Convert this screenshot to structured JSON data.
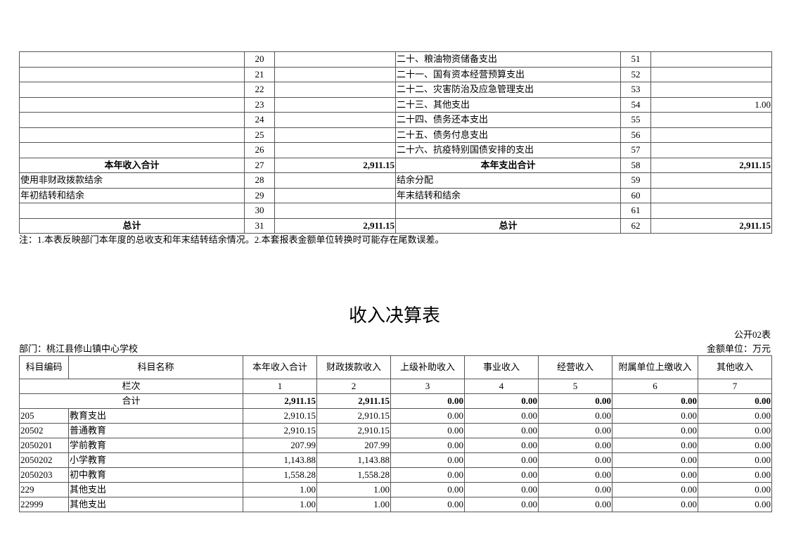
{
  "top_table": {
    "rows": [
      {
        "left_label": "",
        "left_no": "20",
        "left_val": "",
        "right_label": "二十、粮油物资储备支出",
        "right_no": "51",
        "right_val": "",
        "bold": false
      },
      {
        "left_label": "",
        "left_no": "21",
        "left_val": "",
        "right_label": "二十一、国有资本经营预算支出",
        "right_no": "52",
        "right_val": "",
        "bold": false
      },
      {
        "left_label": "",
        "left_no": "22",
        "left_val": "",
        "right_label": "二十二、灾害防治及应急管理支出",
        "right_no": "53",
        "right_val": "",
        "bold": false
      },
      {
        "left_label": "",
        "left_no": "23",
        "left_val": "",
        "right_label": "二十三、其他支出",
        "right_no": "54",
        "right_val": "1.00",
        "bold": false
      },
      {
        "left_label": "",
        "left_no": "24",
        "left_val": "",
        "right_label": "二十四、债务还本支出",
        "right_no": "55",
        "right_val": "",
        "bold": false
      },
      {
        "left_label": "",
        "left_no": "25",
        "left_val": "",
        "right_label": "二十五、债务付息支出",
        "right_no": "56",
        "right_val": "",
        "bold": false
      },
      {
        "left_label": "",
        "left_no": "26",
        "left_val": "",
        "right_label": "二十六、抗疫特别国债安排的支出",
        "right_no": "57",
        "right_val": "",
        "bold": false
      },
      {
        "left_label": "本年收入合计",
        "left_no": "27",
        "left_val": "2,911.15",
        "right_label": "本年支出合计",
        "right_no": "58",
        "right_val": "2,911.15",
        "bold": true
      },
      {
        "left_label": "使用非财政拨款结余",
        "left_no": "28",
        "left_val": "",
        "right_label": "结余分配",
        "right_no": "59",
        "right_val": "",
        "bold": false
      },
      {
        "left_label": "年初结转和结余",
        "left_no": "29",
        "left_val": "",
        "right_label": "年末结转和结余",
        "right_no": "60",
        "right_val": "",
        "bold": false
      },
      {
        "left_label": "",
        "left_no": "30",
        "left_val": "",
        "right_label": "",
        "right_no": "61",
        "right_val": "",
        "bold": false
      },
      {
        "left_label": "总计",
        "left_no": "31",
        "left_val": "2,911.15",
        "right_label": "总计",
        "right_no": "62",
        "right_val": "2,911.15",
        "bold": true
      }
    ],
    "note": "注：1.本表反映部门本年度的总收支和年末结转结余情况。2.本套报表金额单位转换时可能存在尾数误差。"
  },
  "income_table": {
    "title": "收入决算表",
    "form_no": "公开02表",
    "department": "部门：桃江县修山镇中心学校",
    "unit": "金额单位：万元",
    "headers": [
      "科目编码",
      "科目名称",
      "本年收入合计",
      "财政拨款收入",
      "上级补助收入",
      "事业收入",
      "经营收入",
      "附属单位上缴收入",
      "其他收入"
    ],
    "column_index_label": "栏次",
    "column_indices": [
      "1",
      "2",
      "3",
      "4",
      "5",
      "6",
      "7"
    ],
    "total_label": "合计",
    "total_values": [
      "2,911.15",
      "2,911.15",
      "0.00",
      "0.00",
      "0.00",
      "0.00",
      "0.00"
    ],
    "rows": [
      {
        "code": "205",
        "name": "教育支出",
        "values": [
          "2,910.15",
          "2,910.15",
          "0.00",
          "0.00",
          "0.00",
          "0.00",
          "0.00"
        ]
      },
      {
        "code": "20502",
        "name": "普通教育",
        "values": [
          "2,910.15",
          "2,910.15",
          "0.00",
          "0.00",
          "0.00",
          "0.00",
          "0.00"
        ]
      },
      {
        "code": "2050201",
        "name": "学前教育",
        "values": [
          "207.99",
          "207.99",
          "0.00",
          "0.00",
          "0.00",
          "0.00",
          "0.00"
        ]
      },
      {
        "code": "2050202",
        "name": "小学教育",
        "values": [
          "1,143.88",
          "1,143.88",
          "0.00",
          "0.00",
          "0.00",
          "0.00",
          "0.00"
        ]
      },
      {
        "code": "2050203",
        "name": "初中教育",
        "values": [
          "1,558.28",
          "1,558.28",
          "0.00",
          "0.00",
          "0.00",
          "0.00",
          "0.00"
        ]
      },
      {
        "code": "229",
        "name": "其他支出",
        "values": [
          "1.00",
          "1.00",
          "0.00",
          "0.00",
          "0.00",
          "0.00",
          "0.00"
        ]
      },
      {
        "code": "22999",
        "name": "其他支出",
        "values": [
          "1.00",
          "1.00",
          "0.00",
          "0.00",
          "0.00",
          "0.00",
          "0.00"
        ]
      }
    ]
  }
}
